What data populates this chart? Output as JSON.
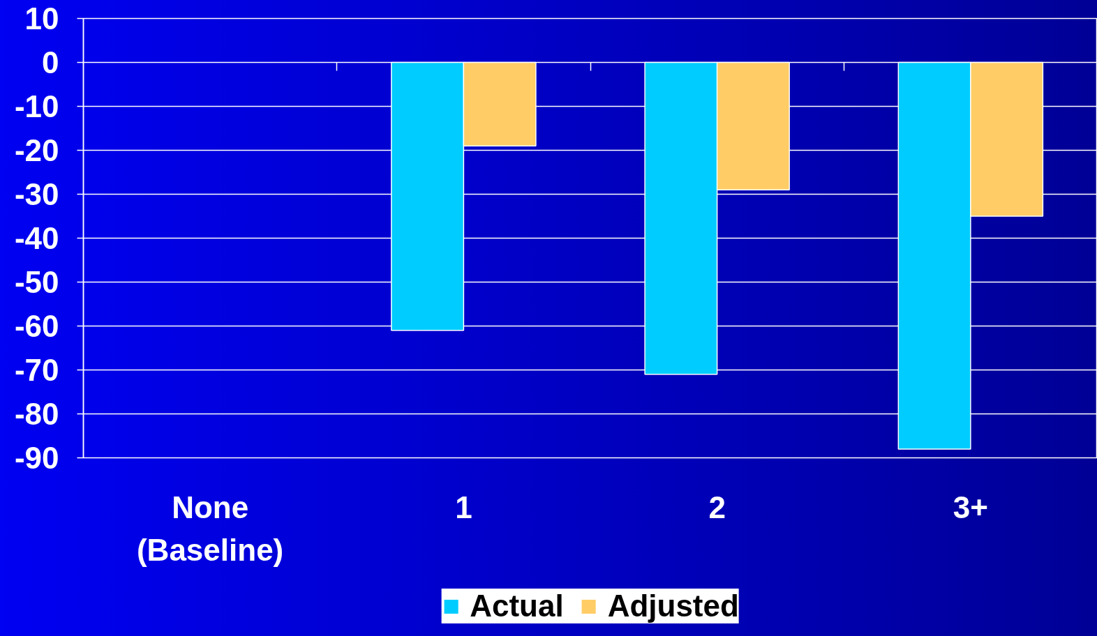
{
  "chart_data": {
    "type": "bar",
    "categories": [
      "None\n(Baseline)",
      "1",
      "2",
      "3+"
    ],
    "series": [
      {
        "name": "Actual",
        "color": "#00ccff",
        "values": [
          null,
          -61,
          -71,
          -88
        ]
      },
      {
        "name": "Adjusted",
        "color": "#ffcc66",
        "values": [
          null,
          -19,
          -29,
          -35
        ]
      }
    ],
    "ylim": [
      -90,
      10
    ],
    "yticks": [
      -90,
      -80,
      -70,
      -60,
      -50,
      -40,
      -30,
      -20,
      -10,
      0,
      10
    ],
    "grid": "y",
    "legend": "bottom"
  }
}
